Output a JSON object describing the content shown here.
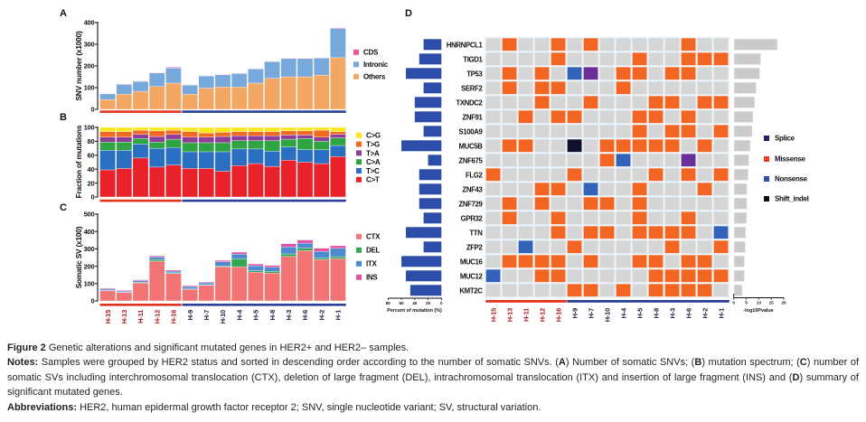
{
  "panel_labels": {
    "a": "A",
    "b": "B",
    "c": "C",
    "d": "D"
  },
  "sample_groups": [
    {
      "sample_count": 5,
      "bar_color": "#e2321e",
      "label_color": "#a8161c"
    },
    {
      "sample_count": 10,
      "bar_color": "#2b3f98",
      "label_color": "#1c1c3c"
    }
  ],
  "chart_data": [
    {
      "id": "A",
      "type": "bar",
      "stacked": true,
      "title": "",
      "xlabel": "",
      "ylabel": "SNV number (x1000)",
      "ylim": [
        0,
        400
      ],
      "yticks": [
        "0",
        "100",
        "200",
        "300",
        "400"
      ],
      "grid": false,
      "legend_position": "right",
      "categories": [
        "H-15",
        "H-13",
        "H-11",
        "H-12",
        "H-16",
        "H-9",
        "H-7",
        "H-10",
        "H-4",
        "H-5",
        "H-8",
        "H-3",
        "H-6",
        "H-2",
        "H-1"
      ],
      "series": [
        {
          "name": "Others",
          "color": "#f2a862",
          "values": [
            45,
            70,
            83,
            105,
            121,
            70,
            98,
            103,
            103,
            121,
            143,
            150,
            150,
            158,
            238
          ]
        },
        {
          "name": "Intronic",
          "color": "#78a9dd",
          "values": [
            27,
            45,
            46,
            63,
            70,
            42,
            56,
            56,
            62,
            65,
            77,
            84,
            84,
            78,
            135
          ]
        },
        {
          "name": "CDS",
          "color": "#e8589a",
          "values": [
            1,
            2,
            2,
            2,
            3,
            2,
            2,
            2,
            2,
            2,
            2,
            2,
            2,
            2,
            3
          ]
        }
      ],
      "legend_order": [
        2,
        1,
        0
      ]
    },
    {
      "id": "B",
      "type": "bar",
      "stacked": true,
      "title": "",
      "xlabel": "",
      "ylabel": "Fraction of mutations",
      "ylim": [
        0,
        100
      ],
      "yticks": [
        "0",
        "20",
        "40",
        "60",
        "80",
        "100"
      ],
      "grid": false,
      "legend_position": "right",
      "categories": [
        "H-15",
        "H-13",
        "H-11",
        "H-12",
        "H-16",
        "H-9",
        "H-7",
        "H-10",
        "H-4",
        "H-5",
        "H-8",
        "H-3",
        "H-6",
        "H-2",
        "H-1"
      ],
      "series": [
        {
          "name": "C>T",
          "color": "#e8212a",
          "values": [
            39,
            41,
            56,
            43,
            46,
            41,
            41,
            37,
            45,
            48,
            44,
            53,
            50,
            48,
            58
          ]
        },
        {
          "name": "T>C",
          "color": "#2a6fc2",
          "values": [
            28,
            26,
            20,
            27,
            25,
            24,
            24,
            28,
            24,
            21,
            22,
            19,
            18,
            20,
            16
          ]
        },
        {
          "name": "C>A",
          "color": "#2ea443",
          "values": [
            12,
            12,
            8,
            9,
            12,
            13,
            13,
            13,
            12,
            12,
            15,
            11,
            16,
            12,
            11
          ]
        },
        {
          "name": "T>A",
          "color": "#8f3d9c",
          "values": [
            7,
            7,
            6,
            8,
            7,
            8,
            8,
            9,
            7,
            7,
            7,
            6,
            5,
            6,
            5
          ]
        },
        {
          "name": "T>G",
          "color": "#f26a22",
          "values": [
            8,
            8,
            6,
            8,
            6,
            8,
            6,
            6,
            6,
            6,
            6,
            6,
            6,
            10,
            4
          ]
        },
        {
          "name": "C>G",
          "color": "#f8e71c",
          "values": [
            6,
            6,
            4,
            5,
            4,
            6,
            8,
            7,
            6,
            6,
            6,
            5,
            5,
            4,
            6
          ]
        }
      ],
      "legend_order": [
        5,
        4,
        3,
        2,
        1,
        0
      ]
    },
    {
      "id": "C",
      "type": "bar",
      "stacked": true,
      "title": "",
      "xlabel": "",
      "ylabel": "Somatic SV (x100)",
      "ylim": [
        0,
        500
      ],
      "yticks": [
        "0",
        "100",
        "200",
        "300",
        "400",
        "500"
      ],
      "grid": false,
      "legend_position": "right",
      "categories": [
        "H-15",
        "H-13",
        "H-11",
        "H-12",
        "H-16",
        "H-9",
        "H-7",
        "H-10",
        "H-4",
        "H-5",
        "H-8",
        "H-3",
        "H-6",
        "H-2",
        "H-1"
      ],
      "series": [
        {
          "name": "CTX",
          "color": "#f27474",
          "values": [
            58,
            49,
            104,
            229,
            158,
            66,
            90,
            196,
            196,
            165,
            160,
            256,
            290,
            238,
            243
          ]
        },
        {
          "name": "DEL",
          "color": "#35a855",
          "values": [
            2,
            1,
            3,
            9,
            4,
            3,
            3,
            5,
            47,
            9,
            10,
            15,
            14,
            9,
            12
          ]
        },
        {
          "name": "ITX",
          "color": "#4d8ad0",
          "values": [
            8,
            7,
            10,
            15,
            10,
            13,
            11,
            25,
            26,
            29,
            24,
            41,
            29,
            39,
            49
          ]
        },
        {
          "name": "INS",
          "color": "#e2509f",
          "values": [
            5,
            4,
            5,
            7,
            6,
            6,
            5,
            8,
            12,
            10,
            11,
            18,
            18,
            18,
            14
          ]
        }
      ],
      "legend_order": [
        0,
        1,
        2,
        3
      ]
    },
    {
      "id": "D",
      "type": "heatmap",
      "title": "",
      "rows": [
        "HNRNPCL1",
        "TIGD1",
        "TP53",
        "SERF2",
        "TXNDC2",
        "ZNF91",
        "S100A9",
        "MUC5B",
        "ZNF675",
        "FLG2",
        "ZNF43",
        "ZNF729",
        "GPR32",
        "TTN",
        "ZFP2",
        "MUC16",
        "MUC12",
        "KMT2C"
      ],
      "columns": [
        "H-15",
        "H-13",
        "H-11",
        "H-12",
        "H-16",
        "H-9",
        "H-7",
        "H-10",
        "H-4",
        "H-5",
        "H-8",
        "H-3",
        "H-6",
        "H-2",
        "H-1"
      ],
      "codes": {
        "-": "none",
        "M": "Missense",
        "N": "Nonsense",
        "S": "Splice",
        "X": "Shift_indel"
      },
      "matrix": [
        "-M--M-M-----M--",
        "----M----M--MMM",
        "-M-M-NS-MM-MM--",
        "-M-MM---M------",
        "---M--M---MM-MM",
        "--M-MM---MM-M--",
        "---------M-MM-M",
        "-MM--X-MMMMM-M-",
        "-------MN---S--",
        "M----M----M-M-M",
        "---MM-N--M---M-",
        "-M-M--MM-M-----",
        "-M--M----M--M--",
        "----M-MM-MMMM-N",
        "--N--M-----M--M",
        "-MMMM-M--MM-MM-",
        "N--MM-----MMMMM",
        "-----MM-M-MMMM-"
      ],
      "cell_colors": {
        "-": "#d6d6d6",
        "M": "#f26522",
        "N": "#3363b9",
        "S": "#6b2f98",
        "X": "#0f0f2e"
      },
      "legend": [
        {
          "name": "Splice",
          "color": "#2c1d63"
        },
        {
          "name": "Missense",
          "color": "#ee3f23"
        },
        {
          "name": "Nonsense",
          "color": "#2f4fa8"
        },
        {
          "name": "Shift_indel",
          "color": "#0b0b14"
        }
      ],
      "legend_position": "right",
      "left_bar": {
        "xlabel": "Percent of mutation (%)",
        "xlim": [
          0,
          80
        ],
        "xticks": [
          "80",
          "60",
          "40",
          "20",
          "0"
        ],
        "direction": "leftward",
        "color": "#2d4ea8",
        "values": [
          26.7,
          33.3,
          53.3,
          26.7,
          40.0,
          40.0,
          26.7,
          60.0,
          20.0,
          33.3,
          33.3,
          33.3,
          26.7,
          53.3,
          26.7,
          60.0,
          53.3,
          46.7
        ]
      },
      "right_bar": {
        "xlabel": "-log10Pvalue",
        "xlim": [
          0,
          20
        ],
        "xticks": [
          "0",
          "5",
          "10",
          "15",
          "20"
        ],
        "color": "#cbcbcb",
        "values": [
          17.2,
          10.5,
          10.1,
          8.7,
          8.1,
          7.4,
          7.1,
          6.3,
          5.8,
          5.5,
          5.0,
          5.0,
          4.9,
          4.5,
          4.3,
          4.0,
          4.0,
          3.1
        ]
      }
    }
  ],
  "caption": {
    "figure_label": "Figure 2",
    "title": "Genetic alterations and significant mutated genes in HER2+ and HER2– samples.",
    "notes_label": "Notes:",
    "notes": [
      "Samples were grouped by HER2 status and sorted in descending order according to the number of somatic SNVs. (",
      "A",
      ") Number of somatic SNVs; (",
      "B",
      ") mutation spectrum; (",
      "C",
      ") number of somatic SVs including interchromosomal translocation (CTX), deletion of large fragment (DEL), intrachromosomal translocation (ITX) and insertion of large fragment (INS) and (",
      "D",
      ") summary of significant mutated genes."
    ],
    "abbreviations_label": "Abbreviations:",
    "abbreviations": "HER2, human epidermal growth factor receptor 2; SNV, single nucleotide variant; SV, structural variation."
  }
}
